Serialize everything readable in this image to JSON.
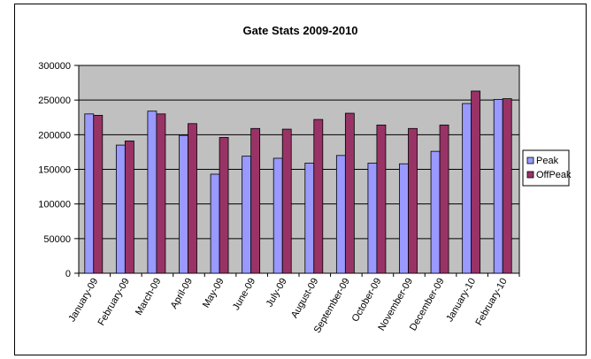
{
  "chart_data": {
    "type": "bar",
    "title": "Gate Stats 2009-2010",
    "xlabel": "",
    "ylabel": "",
    "ylim": [
      0,
      300000
    ],
    "yticks": [
      0,
      50000,
      100000,
      150000,
      200000,
      250000,
      300000
    ],
    "grid": true,
    "legend_position": "right",
    "plot_background": "#c0c0c0",
    "categories": [
      "January-09",
      "February-09",
      "March-09",
      "April-09",
      "May-09",
      "June-09",
      "July-09",
      "August-09",
      "September-09",
      "October-09",
      "November-09",
      "December-09",
      "January-10",
      "February-10"
    ],
    "series": [
      {
        "name": "Peak",
        "color": "#9999ff",
        "values": [
          230000,
          185000,
          234000,
          199000,
          143000,
          169000,
          166000,
          159000,
          170000,
          159000,
          158000,
          176000,
          245000,
          251000
        ]
      },
      {
        "name": "OffPeak",
        "color": "#993366",
        "values": [
          228000,
          191000,
          230000,
          216000,
          196000,
          209000,
          208000,
          222000,
          231000,
          214000,
          209000,
          214000,
          263000,
          252000
        ]
      }
    ]
  }
}
